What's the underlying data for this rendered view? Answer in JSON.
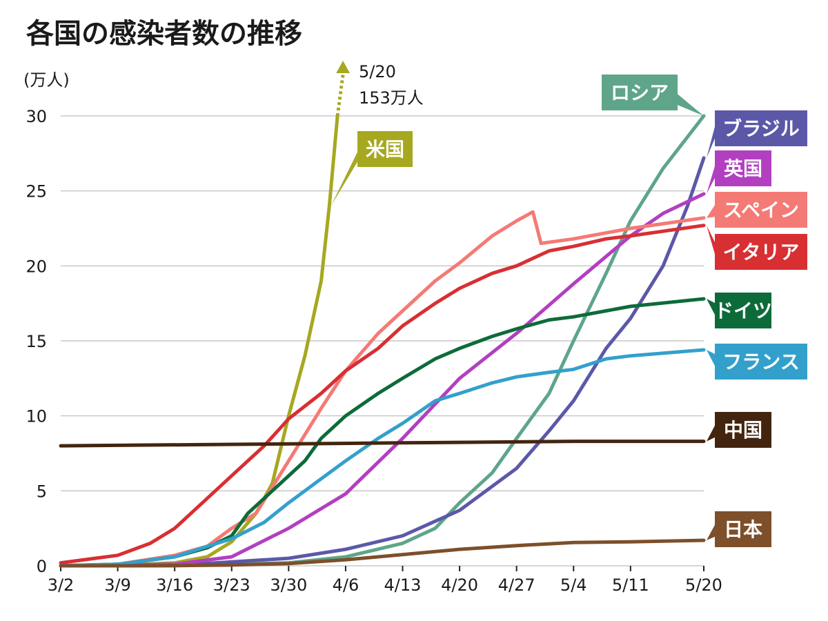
{
  "chart_data": {
    "type": "line",
    "title": "各国の感染者数の推移",
    "ylabel": "(万人)",
    "ylim": [
      0,
      30
    ],
    "yticks": [
      "0",
      "5",
      "10",
      "15",
      "20",
      "25",
      "30"
    ],
    "xticks": [
      "3/2",
      "3/9",
      "3/16",
      "3/23",
      "3/30",
      "4/6",
      "4/13",
      "4/20",
      "4/27",
      "5/4",
      "5/11",
      "5/20"
    ],
    "xtick_days": [
      0,
      7,
      14,
      21,
      28,
      35,
      42,
      49,
      56,
      63,
      70,
      79
    ],
    "annotation": {
      "line1": "5/20",
      "line2": "153万人"
    },
    "series": [
      {
        "name": "米国",
        "color": "#a6a820",
        "label_value": 27.3,
        "points": [
          [
            0,
            0.01
          ],
          [
            7,
            0.03
          ],
          [
            14,
            0.2
          ],
          [
            18,
            0.6
          ],
          [
            21,
            1.6
          ],
          [
            24,
            3.5
          ],
          [
            26,
            5.5
          ],
          [
            28,
            10.0
          ],
          [
            30,
            14.0
          ],
          [
            32,
            19.0
          ],
          [
            33,
            24.0
          ],
          [
            34,
            30.0
          ]
        ]
      },
      {
        "name": "ロシア",
        "color": "#5ea58a",
        "label_value": 30,
        "points": [
          [
            0,
            0
          ],
          [
            14,
            0.01
          ],
          [
            28,
            0.2
          ],
          [
            35,
            0.6
          ],
          [
            42,
            1.5
          ],
          [
            46,
            2.5
          ],
          [
            49,
            4.2
          ],
          [
            53,
            6.2
          ],
          [
            56,
            8.5
          ],
          [
            60,
            11.5
          ],
          [
            63,
            15.0
          ],
          [
            67,
            19.5
          ],
          [
            70,
            23.0
          ],
          [
            74,
            26.5
          ],
          [
            79,
            30.0
          ]
        ]
      },
      {
        "name": "ブラジル",
        "color": "#5c58a8",
        "label_value": 27.2,
        "points": [
          [
            0,
            0
          ],
          [
            14,
            0.02
          ],
          [
            28,
            0.5
          ],
          [
            35,
            1.1
          ],
          [
            42,
            2.0
          ],
          [
            49,
            3.7
          ],
          [
            56,
            6.5
          ],
          [
            60,
            9.0
          ],
          [
            63,
            11.0
          ],
          [
            67,
            14.5
          ],
          [
            70,
            16.5
          ],
          [
            74,
            20.0
          ],
          [
            77,
            24.0
          ],
          [
            79,
            27.2
          ]
        ]
      },
      {
        "name": "英国",
        "color": "#b23fc0",
        "label_value": 24.8,
        "points": [
          [
            0,
            0
          ],
          [
            14,
            0.1
          ],
          [
            21,
            0.6
          ],
          [
            28,
            2.5
          ],
          [
            35,
            4.8
          ],
          [
            42,
            8.5
          ],
          [
            49,
            12.5
          ],
          [
            56,
            15.5
          ],
          [
            63,
            18.8
          ],
          [
            70,
            22.0
          ],
          [
            74,
            23.5
          ],
          [
            79,
            24.8
          ]
        ]
      },
      {
        "name": "スペイン",
        "color": "#f47a75",
        "label_value": 23.2,
        "points": [
          [
            0,
            0.02
          ],
          [
            7,
            0.1
          ],
          [
            14,
            0.7
          ],
          [
            18,
            1.3
          ],
          [
            21,
            2.5
          ],
          [
            24,
            3.5
          ],
          [
            28,
            7.0
          ],
          [
            32,
            10.5
          ],
          [
            35,
            13.0
          ],
          [
            39,
            15.5
          ],
          [
            42,
            17.0
          ],
          [
            46,
            19.0
          ],
          [
            49,
            20.2
          ],
          [
            53,
            22.0
          ],
          [
            56,
            23.0
          ],
          [
            58,
            23.6
          ],
          [
            59,
            21.5
          ],
          [
            63,
            21.8
          ],
          [
            70,
            22.5
          ],
          [
            79,
            23.2
          ]
        ]
      },
      {
        "name": "イタリア",
        "color": "#d82f33",
        "label_value": 22.7,
        "points": [
          [
            0,
            0.2
          ],
          [
            7,
            0.7
          ],
          [
            11,
            1.5
          ],
          [
            14,
            2.5
          ],
          [
            18,
            4.5
          ],
          [
            21,
            6.0
          ],
          [
            25,
            8.0
          ],
          [
            28,
            9.8
          ],
          [
            32,
            11.5
          ],
          [
            35,
            13.0
          ],
          [
            39,
            14.5
          ],
          [
            42,
            16.0
          ],
          [
            46,
            17.5
          ],
          [
            49,
            18.5
          ],
          [
            53,
            19.5
          ],
          [
            56,
            20.0
          ],
          [
            60,
            21.0
          ],
          [
            63,
            21.3
          ],
          [
            67,
            21.8
          ],
          [
            70,
            22.0
          ],
          [
            79,
            22.7
          ]
        ]
      },
      {
        "name": "ドイツ",
        "color": "#0d6b3a",
        "label_value": 17.8,
        "points": [
          [
            0,
            0.01
          ],
          [
            7,
            0.1
          ],
          [
            14,
            0.6
          ],
          [
            18,
            1.2
          ],
          [
            21,
            2.0
          ],
          [
            23,
            3.5
          ],
          [
            25,
            4.5
          ],
          [
            28,
            6.0
          ],
          [
            30,
            7.0
          ],
          [
            32,
            8.5
          ],
          [
            35,
            10.0
          ],
          [
            39,
            11.5
          ],
          [
            42,
            12.5
          ],
          [
            46,
            13.8
          ],
          [
            49,
            14.5
          ],
          [
            53,
            15.3
          ],
          [
            56,
            15.8
          ],
          [
            60,
            16.4
          ],
          [
            63,
            16.6
          ],
          [
            67,
            17.0
          ],
          [
            70,
            17.3
          ],
          [
            79,
            17.8
          ]
        ]
      },
      {
        "name": "フランス",
        "color": "#33a0cc",
        "label_value": 14.4,
        "points": [
          [
            0,
            0.01
          ],
          [
            7,
            0.1
          ],
          [
            14,
            0.6
          ],
          [
            18,
            1.3
          ],
          [
            21,
            1.8
          ],
          [
            25,
            2.9
          ],
          [
            28,
            4.2
          ],
          [
            32,
            5.8
          ],
          [
            35,
            7.0
          ],
          [
            39,
            8.5
          ],
          [
            42,
            9.5
          ],
          [
            46,
            11.0
          ],
          [
            49,
            11.5
          ],
          [
            53,
            12.2
          ],
          [
            56,
            12.6
          ],
          [
            60,
            12.9
          ],
          [
            63,
            13.1
          ],
          [
            67,
            13.8
          ],
          [
            70,
            14.0
          ],
          [
            79,
            14.4
          ]
        ]
      },
      {
        "name": "中国",
        "color": "#43250f",
        "label_value": 8.3,
        "points": [
          [
            0,
            8.0
          ],
          [
            21,
            8.1
          ],
          [
            42,
            8.2
          ],
          [
            63,
            8.3
          ],
          [
            79,
            8.3
          ]
        ]
      },
      {
        "name": "日本",
        "color": "#7d4f2a",
        "label_value": 1.7,
        "points": [
          [
            0,
            0
          ],
          [
            14,
            0.01
          ],
          [
            21,
            0.05
          ],
          [
            28,
            0.15
          ],
          [
            35,
            0.4
          ],
          [
            42,
            0.75
          ],
          [
            49,
            1.1
          ],
          [
            56,
            1.35
          ],
          [
            63,
            1.55
          ],
          [
            70,
            1.6
          ],
          [
            79,
            1.7
          ]
        ]
      }
    ]
  }
}
